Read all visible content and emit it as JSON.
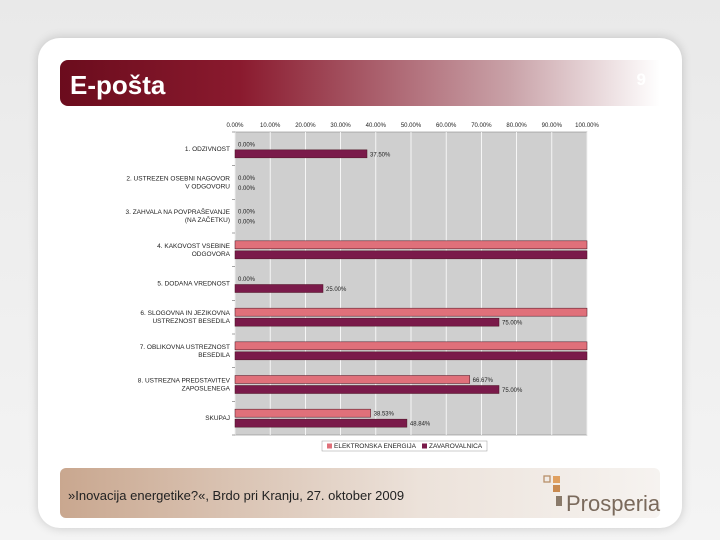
{
  "slide": {
    "title": "E-pošta",
    "page_number": "9",
    "footer": "»Inovacija energetike?«, Brdo pri Kranju, 27. oktober 2009",
    "logo_text": "Prosperia"
  },
  "colors": {
    "title_bar": "#8a1a2e",
    "series1": "#e0707a",
    "series2": "#7a1a4a"
  },
  "chart_data": {
    "type": "bar",
    "orientation": "horizontal",
    "xlim": [
      0,
      100
    ],
    "x_ticks": [
      "0.00%",
      "10.00%",
      "20.00%",
      "30.00%",
      "40.00%",
      "50.00%",
      "60.00%",
      "70.00%",
      "80.00%",
      "90.00%",
      "100.00%"
    ],
    "categories": [
      [
        "1. ODZIVNOST"
      ],
      [
        "2. USTREZEN OSEBNI NAGOVOR",
        "V ODGOVORU"
      ],
      [
        "3. ZAHVALA NA POVPRAŠEVANJE",
        "(NA ZAČETKU)"
      ],
      [
        "4. KAKOVOST VSEBINE",
        "ODGOVORA"
      ],
      [
        "5. DODANA VREDNOST"
      ],
      [
        "6. SLOGOVNA IN JEZIKOVNA",
        "USTREZNOST BESEDILA"
      ],
      [
        "7. OBLIKOVNA USTREZNOST",
        "BESEDILA"
      ],
      [
        "8. USTREZNA PREDSTAVITEV",
        "ZAPOSLENEGA"
      ],
      [
        "SKUPAJ"
      ]
    ],
    "series": [
      {
        "name": "ELEKTRONSKA ENERGIJA",
        "values": [
          0,
          0,
          0,
          100,
          0,
          100,
          100,
          66.67,
          38.53
        ],
        "labels": [
          "0.00%",
          "0.00%",
          "0.00%",
          "",
          "0.00%",
          "",
          "",
          "66.67%",
          "38.53%"
        ]
      },
      {
        "name": "ZAVAROVALNICA",
        "values": [
          37.5,
          0,
          0,
          100,
          25,
          75,
          100,
          75,
          48.84
        ],
        "labels": [
          "37.50%",
          "0.00%",
          "0.00%",
          "",
          "25.00%",
          "75.00%",
          "",
          "75.00%",
          "48.84%"
        ]
      }
    ],
    "legend_position": "bottom",
    "grid": true
  }
}
